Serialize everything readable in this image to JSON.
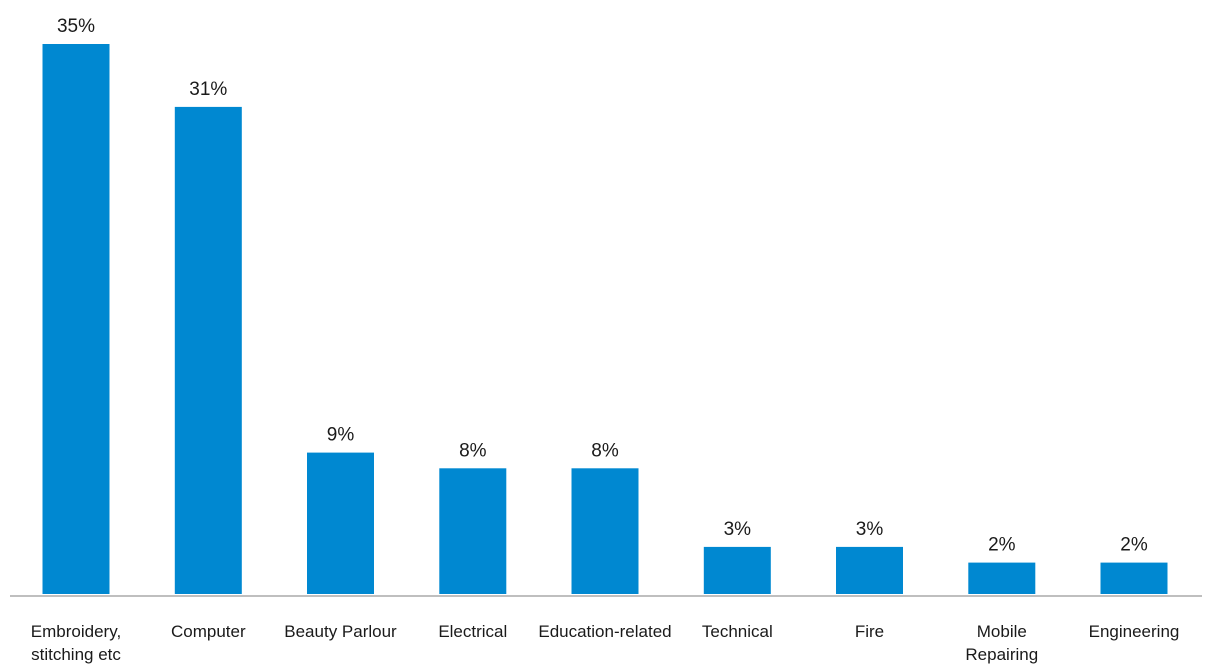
{
  "chart_data": {
    "type": "bar",
    "title": "",
    "xlabel": "",
    "ylabel": "",
    "ylim": [
      0,
      35
    ],
    "grid": false,
    "legend": "none",
    "bar_color": "#0088d1",
    "axis_color": "#bfbfbf",
    "categories": [
      [
        "Embroidery,",
        "stitching etc"
      ],
      [
        "Computer"
      ],
      [
        "Beauty Parlour"
      ],
      [
        "Electrical"
      ],
      [
        "Education-related"
      ],
      [
        "Technical"
      ],
      [
        "Fire"
      ],
      [
        "Mobile",
        "Repairing"
      ],
      [
        "Engineering"
      ]
    ],
    "values": [
      35,
      31,
      9,
      8,
      8,
      3,
      3,
      2,
      2
    ],
    "data_labels": [
      "35%",
      "31%",
      "9%",
      "8%",
      "8%",
      "3%",
      "3%",
      "2%",
      "2%"
    ]
  }
}
